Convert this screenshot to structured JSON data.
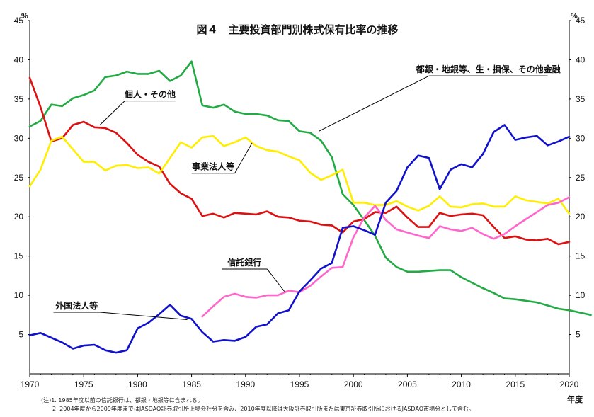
{
  "chart_data": {
    "type": "line",
    "title": "図４　主要投資部門別株式保有比率の推移",
    "y_unit_left": "%",
    "y_unit_right": "%",
    "x_unit": "年度",
    "xlim": [
      1970,
      2020
    ],
    "ylim": [
      0,
      45
    ],
    "x_ticks": [
      1970,
      1975,
      1980,
      1985,
      1990,
      1995,
      2000,
      2005,
      2010,
      2015,
      2020
    ],
    "y_ticks": [
      5,
      10,
      15,
      20,
      25,
      30,
      35,
      40,
      45
    ],
    "grid": false,
    "series": [
      {
        "name": "都銀・地銀等、生・損保、その他金融",
        "color": "#22aa44",
        "x_start": 1970,
        "values": [
          31.5,
          32.2,
          34.3,
          34.1,
          35.1,
          35.5,
          36.1,
          37.8,
          38.0,
          38.5,
          38.2,
          38.2,
          38.6,
          37.3,
          38.0,
          39.8,
          34.2,
          33.9,
          34.3,
          33.4,
          33.1,
          33.1,
          32.9,
          32.3,
          32.2,
          30.9,
          30.7,
          29.7,
          27.6,
          22.9,
          21.5,
          19.6,
          17.6,
          14.8,
          13.6,
          13.0,
          13.0,
          13.1,
          13.2,
          13.2,
          12.3,
          11.6,
          10.9,
          10.3,
          9.6,
          9.5,
          9.3,
          9.1,
          8.7,
          8.3,
          8.1,
          7.8,
          7.5
        ]
      },
      {
        "name": "個人・その他",
        "color": "#dd1111",
        "x_start": 1970,
        "values": [
          37.7,
          34.0,
          29.6,
          30.0,
          31.7,
          32.1,
          31.4,
          31.3,
          30.7,
          29.4,
          27.9,
          27.0,
          26.4,
          24.2,
          23.0,
          22.3,
          20.1,
          20.4,
          19.9,
          20.5,
          20.4,
          20.3,
          20.7,
          20.0,
          19.9,
          19.5,
          19.4,
          19.0,
          18.9,
          18.0,
          19.4,
          19.7,
          20.6,
          20.5,
          21.3,
          19.9,
          18.7,
          18.7,
          20.5,
          20.1,
          20.3,
          20.4,
          20.2,
          18.7,
          17.3,
          17.5,
          17.1,
          17.0,
          17.2,
          16.5,
          16.8
        ]
      },
      {
        "name": "事業法人等",
        "color": "#ffee00",
        "x_start": 1970,
        "values": [
          23.9,
          26.0,
          29.7,
          30.2,
          28.6,
          27.0,
          27.0,
          25.9,
          26.5,
          26.6,
          26.2,
          26.3,
          25.5,
          27.5,
          29.5,
          28.8,
          30.1,
          30.3,
          29.0,
          29.5,
          30.1,
          29.0,
          28.5,
          28.3,
          27.7,
          27.2,
          25.6,
          24.7,
          25.3,
          26.0,
          21.8,
          21.8,
          21.5,
          21.5,
          22.0,
          21.3,
          20.8,
          21.4,
          22.6,
          21.3,
          21.2,
          21.6,
          21.7,
          21.3,
          21.3,
          22.6,
          22.1,
          21.9,
          21.7,
          22.3,
          20.4
        ]
      },
      {
        "name": "信託銀行",
        "color": "#ff66cc",
        "x_start": 1986,
        "values": [
          7.3,
          8.6,
          9.8,
          10.2,
          9.8,
          9.7,
          10.0,
          10.0,
          10.6,
          10.4,
          11.2,
          12.4,
          13.5,
          13.6,
          17.4,
          19.9,
          21.4,
          19.6,
          18.4,
          18.0,
          17.6,
          17.3,
          18.8,
          18.4,
          18.2,
          18.6,
          17.8,
          17.2,
          17.8,
          18.8,
          19.7,
          20.6,
          21.5,
          21.8,
          22.5
        ]
      },
      {
        "name": "外国法人等",
        "color": "#1111cc",
        "x_start": 1970,
        "values": [
          4.9,
          5.2,
          4.6,
          4.0,
          3.2,
          3.6,
          3.7,
          3.0,
          2.7,
          3.0,
          5.8,
          6.5,
          7.6,
          8.8,
          7.4,
          7.0,
          5.3,
          4.1,
          4.3,
          4.2,
          4.7,
          6.0,
          6.3,
          7.7,
          8.1,
          10.5,
          11.9,
          13.4,
          14.1,
          18.6,
          18.8,
          18.3,
          17.7,
          21.8,
          23.3,
          26.3,
          27.8,
          27.5,
          23.5,
          26.0,
          26.7,
          26.3,
          28.0,
          30.8,
          31.7,
          29.8,
          30.1,
          30.3,
          29.1,
          29.6,
          30.2
        ]
      }
    ],
    "annotations": [
      {
        "text": "都銀・地銀等、生・損保、その他金融",
        "series": 0,
        "x": 1996.8,
        "y": 30.9,
        "text_x": 2007,
        "text_y": 38.4,
        "underline_to_x": 2018
      },
      {
        "text": "個人・その他",
        "series": 1,
        "x": 1976.5,
        "y": 31.7,
        "text_x": 1983.5,
        "text_y": 35.2,
        "underline_to_x": 1978.8
      },
      {
        "text": "事業法人等",
        "series": 2,
        "x": 1990.6,
        "y": 29.4,
        "text_x": 1989,
        "text_y": 26.0,
        "underline_to_x": 1985
      },
      {
        "text": "信託銀行",
        "series": 3,
        "x": 1993.6,
        "y": 10.5,
        "text_x": 1992,
        "text_y": 13.8,
        "underline_to_x": 1987.8
      },
      {
        "text": "外国法人等",
        "series": 4,
        "x": 1984.6,
        "y": 6.9,
        "text_x": 1976.5,
        "text_y": 8.3,
        "underline_to_x": 1972.2
      }
    ]
  },
  "notes": [
    "(注)1. 1985年度以前の信託銀行は、都銀・地銀等に含まれる。",
    "2. 2004年度から2009年度まではJASDAQ証券取引所上場会社分を含み、2010年度以降は大阪証券取引所または東京証券取引所におけるJASDAQ市場分として含む。"
  ]
}
